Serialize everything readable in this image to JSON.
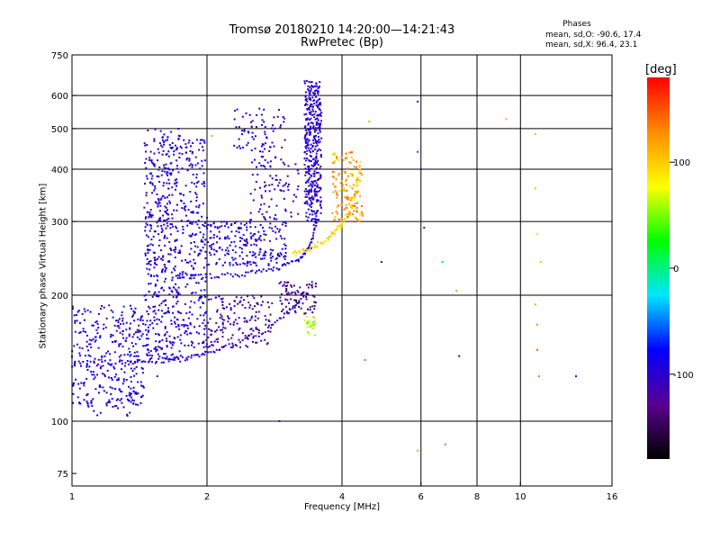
{
  "chart_data": {
    "type": "scatter",
    "title": "Tromsø 20180210 14:20:00—14:21:43",
    "subtitle": "RwPretec (Bp)",
    "xlabel": "Frequency [MHz]",
    "ylabel": "Stationary phase Virtual Height [km]",
    "xscale": "log",
    "yscale": "log",
    "xlim": [
      1,
      16
    ],
    "ylim": [
      70,
      750
    ],
    "xticks": [
      1,
      2,
      4,
      6,
      8,
      10,
      16
    ],
    "xtick_labels": [
      "1",
      "2",
      "4",
      "6",
      "8",
      "10",
      "16"
    ],
    "yticks": [
      75,
      100,
      200,
      300,
      400,
      500,
      600,
      750
    ],
    "ytick_labels": [
      "75",
      "100",
      "200",
      "300",
      "400",
      "500",
      "600",
      "750"
    ],
    "grid_x": [
      2,
      4,
      6,
      8,
      10
    ],
    "grid_y": [
      100,
      200,
      300,
      400,
      500,
      600
    ],
    "grid": true,
    "stats": {
      "heading": "Phases",
      "line_o": "mean, sd,O: -90.6, 17.4",
      "line_x": "mean, sd,X:  96.4, 23.1"
    },
    "colorbar": {
      "unit": "[deg]",
      "range": [
        -180,
        180
      ],
      "ticks": [
        100,
        0,
        -100
      ],
      "tick_labels": [
        "100",
        "0",
        "-100"
      ],
      "colormap": [
        "#000000",
        "#5a0090",
        "#0000ff",
        "#00e6ff",
        "#00ff00",
        "#ffff00",
        "#ff8c00",
        "#ff0000"
      ]
    },
    "series": [
      {
        "id": "o-cusp",
        "x": [
          1.0,
          1.3,
          1.55,
          1.8,
          2.0,
          2.3,
          2.7,
          3.1,
          3.3
        ],
        "y": [
          138,
          138,
          139,
          141,
          145,
          153,
          165,
          185,
          205
        ],
        "phase": -100
      },
      {
        "id": "o-f2",
        "x": [
          1.7,
          2.0,
          2.4,
          2.8,
          3.2,
          3.4,
          3.5,
          3.55
        ],
        "y": [
          222,
          222,
          224,
          230,
          243,
          262,
          300,
          640
        ],
        "phase": -95
      },
      {
        "id": "x-trace",
        "x": [
          3.1,
          3.4,
          3.7,
          3.95,
          4.15,
          4.3,
          4.4
        ],
        "y": [
          250,
          258,
          272,
          290,
          315,
          355,
          420
        ],
        "phase": 95
      }
    ],
    "scatter_points": [
      {
        "x": 4.0,
        "y": 360,
        "phase": 120
      },
      {
        "x": 4.6,
        "y": 520,
        "phase": 110
      },
      {
        "x": 5.9,
        "y": 580,
        "phase": -110
      },
      {
        "x": 5.9,
        "y": 440,
        "phase": -60
      },
      {
        "x": 5.9,
        "y": 85,
        "phase": 120
      },
      {
        "x": 6.0,
        "y": 400,
        "phase": -110
      },
      {
        "x": 6.1,
        "y": 290,
        "phase": -120
      },
      {
        "x": 6.7,
        "y": 240,
        "phase": 20
      },
      {
        "x": 6.8,
        "y": 88,
        "phase": 140
      },
      {
        "x": 7.2,
        "y": 205,
        "phase": 120
      },
      {
        "x": 7.3,
        "y": 143,
        "phase": -100
      },
      {
        "x": 9.3,
        "y": 527,
        "phase": 110
      },
      {
        "x": 10.8,
        "y": 485,
        "phase": 110
      },
      {
        "x": 10.8,
        "y": 360,
        "phase": 110
      },
      {
        "x": 10.9,
        "y": 280,
        "phase": 60
      },
      {
        "x": 10.8,
        "y": 190,
        "phase": 120
      },
      {
        "x": 10.9,
        "y": 170,
        "phase": 130
      },
      {
        "x": 10.9,
        "y": 148,
        "phase": 150
      },
      {
        "x": 11.0,
        "y": 128,
        "phase": 140
      },
      {
        "x": 11.1,
        "y": 240,
        "phase": 110
      },
      {
        "x": 13.3,
        "y": 128,
        "phase": -110
      },
      {
        "x": 4.9,
        "y": 240,
        "phase": -110
      },
      {
        "x": 4.5,
        "y": 140,
        "phase": 150
      },
      {
        "x": 1.55,
        "y": 128,
        "phase": -100
      },
      {
        "x": 1.9,
        "y": 470,
        "phase": -90
      },
      {
        "x": 2.05,
        "y": 480,
        "phase": 120
      },
      {
        "x": 2.3,
        "y": 455,
        "phase": -100
      },
      {
        "x": 2.9,
        "y": 100,
        "phase": -110
      },
      {
        "x": 3.0,
        "y": 210,
        "phase": -150
      }
    ],
    "clouds": [
      {
        "x": [
          1.0,
          1.45
        ],
        "y": [
          108,
          190
        ],
        "n": 320,
        "phase": [
          -120,
          -70
        ]
      },
      {
        "x": [
          1.45,
          1.75
        ],
        "y": [
          140,
          500
        ],
        "n": 480,
        "phase": [
          -115,
          -80
        ]
      },
      {
        "x": [
          1.75,
          2.0
        ],
        "y": [
          150,
          470
        ],
        "n": 220,
        "phase": [
          -115,
          -80
        ]
      },
      {
        "x": [
          2.0,
          3.0
        ],
        "y": [
          235,
          300
        ],
        "n": 220,
        "phase": [
          -115,
          -80
        ]
      },
      {
        "x": [
          2.3,
          3.0
        ],
        "y": [
          440,
          560
        ],
        "n": 70,
        "phase": [
          -115,
          -80
        ]
      },
      {
        "x": [
          2.5,
          3.2
        ],
        "y": [
          300,
          430
        ],
        "n": 90,
        "phase": [
          -120,
          -80
        ]
      },
      {
        "x": [
          3.3,
          3.6
        ],
        "y": [
          300,
          650
        ],
        "n": 380,
        "phase": [
          -120,
          -80
        ]
      },
      {
        "x": [
          1.95,
          2.8
        ],
        "y": [
          150,
          200
        ],
        "n": 160,
        "phase": [
          -150,
          -90
        ]
      },
      {
        "x": [
          2.9,
          3.5
        ],
        "y": [
          180,
          215
        ],
        "n": 80,
        "phase": [
          -160,
          -90
        ]
      },
      {
        "x": [
          3.3,
          3.5
        ],
        "y": [
          160,
          180
        ],
        "n": 25,
        "phase": [
          40,
          100
        ]
      },
      {
        "x": [
          3.8,
          4.45
        ],
        "y": [
          300,
          440
        ],
        "n": 130,
        "phase": [
          90,
          150
        ]
      },
      {
        "x": [
          1.08,
          1.35
        ],
        "y": [
          100,
          120
        ],
        "n": 25,
        "phase": [
          -110,
          -80
        ]
      }
    ]
  }
}
